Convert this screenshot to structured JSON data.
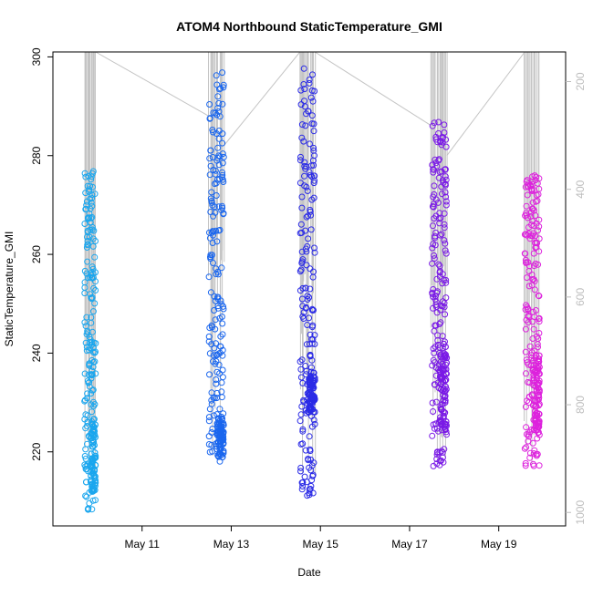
{
  "chart_data": {
    "type": "scatter",
    "title": "ATOM4 Northbound StaticTemperature_GMI",
    "xlabel": "Date",
    "ylabel": "StaticTemperature_GMI",
    "xlim": [
      "2016-05-09T00:00",
      "2016-05-20T12:00"
    ],
    "ylim": [
      205,
      301
    ],
    "y_ticks": [
      220,
      240,
      260,
      280,
      300
    ],
    "x_ticks": [
      {
        "label": "May 11",
        "date": "2016-05-11"
      },
      {
        "label": "May 13",
        "date": "2016-05-13"
      },
      {
        "label": "May 15",
        "date": "2016-05-15"
      },
      {
        "label": "May 17",
        "date": "2016-05-17"
      },
      {
        "label": "May 19",
        "date": "2016-05-19"
      }
    ],
    "y2_ticks": [
      200,
      400,
      600,
      800,
      1000
    ],
    "y2lim": [
      145,
      1025
    ],
    "y2_reversed": true,
    "y2_note": "right axis unlabeled, pressure-like altitude scale, drawn in grey",
    "line_color": "#c4c4c4",
    "flights": [
      {
        "start": "2016-05-09T17:00",
        "end": "2016-05-09T23:00",
        "temp_min": 208,
        "temp_max": 277,
        "color": "#1aa6ee",
        "bottom_cluster": [
          212,
          226
        ]
      },
      {
        "start": "2016-05-12T12:00",
        "end": "2016-05-12T20:00",
        "temp_min": 218,
        "temp_max": 297,
        "color": "#1a66ee",
        "bottom_cluster": [
          219,
          227
        ]
      },
      {
        "start": "2016-05-14T13:00",
        "end": "2016-05-14T21:00",
        "temp_min": 211,
        "temp_max": 298,
        "color": "#2a2ae6",
        "bottom_cluster": [
          228,
          236
        ]
      },
      {
        "start": "2016-05-17T12:00",
        "end": "2016-05-17T20:00",
        "temp_min": 217,
        "temp_max": 287,
        "color": "#7a1ae6",
        "bottom_cluster": [
          224,
          242
        ]
      },
      {
        "start": "2016-05-19T14:00",
        "end": "2016-05-19T22:00",
        "temp_min": 217,
        "temp_max": 276,
        "color": "#dd22dd",
        "bottom_cluster": [
          223,
          240
        ]
      }
    ]
  }
}
